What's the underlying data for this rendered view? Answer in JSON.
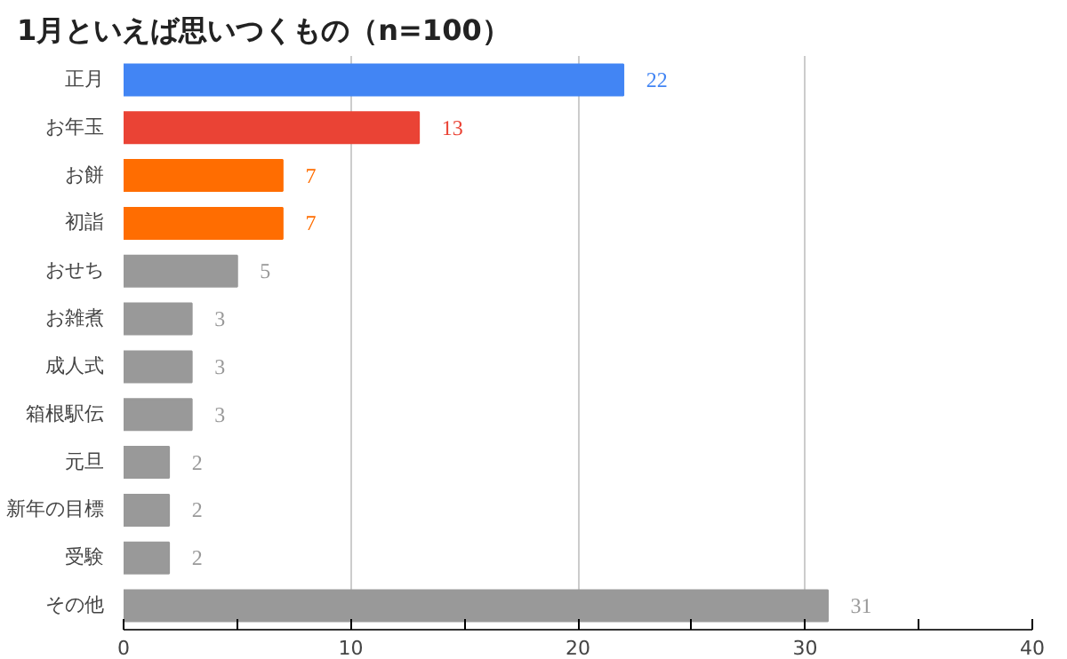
{
  "chart_data": {
    "type": "bar",
    "orientation": "horizontal",
    "title": "1月といえば思いつくもの（n=100）",
    "categories": [
      "正月",
      "お年玉",
      "お餅",
      "初詣",
      "おせち",
      "お雑煮",
      "成人式",
      "箱根駅伝",
      "元旦",
      "新年の目標",
      "受験",
      "その他"
    ],
    "values": [
      22,
      13,
      7,
      7,
      5,
      3,
      3,
      3,
      2,
      2,
      2,
      31
    ],
    "colors": [
      "#4285f4",
      "#ea4335",
      "#ff6d01",
      "#ff6d01",
      "#999999",
      "#999999",
      "#999999",
      "#999999",
      "#999999",
      "#999999",
      "#999999",
      "#999999"
    ],
    "xlim": [
      0,
      40
    ],
    "xticks": [
      0,
      {
        "value": 5,
        "label": null
      },
      10,
      {
        "value": 15,
        "label": null
      },
      20,
      {
        "value": 25,
        "label": null
      },
      30,
      {
        "value": 35,
        "label": null
      },
      40
    ],
    "grid": "x",
    "data_labels": true
  }
}
